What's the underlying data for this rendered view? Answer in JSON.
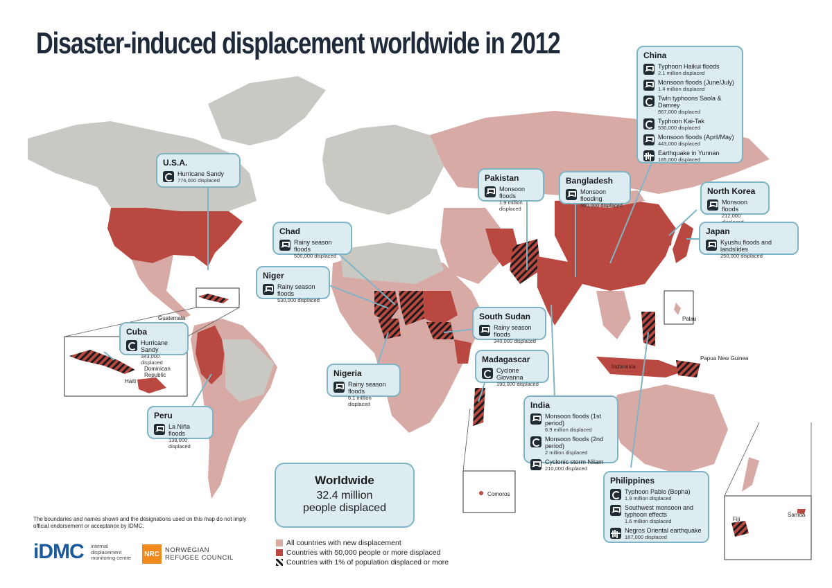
{
  "title": "Disaster-induced displacement worldwide in 2012",
  "colors": {
    "no_data": "#c9c8c3",
    "new_displacement": "#d8aaa6",
    "over_50000": "#b84840",
    "over_1pct_hatch": "#1a1a1a",
    "box_fill": "#dcecf1",
    "box_border": "#7fb4c5",
    "title": "#1e2a3a"
  },
  "boxes": {
    "usa": {
      "country": "U.S.A.",
      "events": [
        {
          "icon": "storm-icon",
          "name": "Hurricane Sandy",
          "displaced": "776,000 displaced"
        }
      ]
    },
    "cuba": {
      "country": "Cuba",
      "events": [
        {
          "icon": "storm-icon",
          "name": "Hurricane Sandy",
          "displaced": "343,000 displaced"
        }
      ]
    },
    "peru": {
      "country": "Peru",
      "events": [
        {
          "icon": "flood-icon",
          "name": "La Niña floods",
          "displaced": "138,000 displaced"
        }
      ]
    },
    "chad": {
      "country": "Chad",
      "events": [
        {
          "icon": "flood-icon",
          "name": "Rainy season floods",
          "displaced": "500,000 displaced"
        }
      ]
    },
    "niger": {
      "country": "Niger",
      "events": [
        {
          "icon": "flood-icon",
          "name": "Rainy season floods",
          "displaced": "530,000 displaced"
        }
      ]
    },
    "nigeria": {
      "country": "Nigeria",
      "events": [
        {
          "icon": "flood-icon",
          "name": "Rainy season floods",
          "displaced": "6.1 million displaced"
        }
      ]
    },
    "south_sudan": {
      "country": "South Sudan",
      "events": [
        {
          "icon": "flood-icon",
          "name": "Rainy season floods",
          "displaced": "340,000 displaced"
        }
      ]
    },
    "madagascar": {
      "country": "Madagascar",
      "events": [
        {
          "icon": "storm-icon",
          "name": "Cyclone Giovanna",
          "displaced": "190,000 displaced"
        }
      ]
    },
    "pakistan": {
      "country": "Pakistan",
      "events": [
        {
          "icon": "flood-icon",
          "name": "Monsoon floods",
          "displaced": "1.9 million displaced"
        }
      ]
    },
    "bangladesh": {
      "country": "Bangladesh",
      "events": [
        {
          "icon": "flood-icon",
          "name": "Monsoon flooding",
          "displaced": "600,000 displaced"
        }
      ]
    },
    "india": {
      "country": "India",
      "events": [
        {
          "icon": "flood-icon",
          "name": "Monsoon floods (1st period)",
          "displaced": "6.9 million displaced"
        },
        {
          "icon": "storm-icon",
          "name": "Monsoon floods (2nd period)",
          "displaced": "2 million displaced"
        },
        {
          "icon": "flood-icon",
          "name": "Cyclonic storm Nilam",
          "displaced": "210,000 displaced"
        }
      ]
    },
    "china": {
      "country": "China",
      "events": [
        {
          "icon": "flood-icon",
          "name": "Typhoon Haikui floods",
          "displaced": "2.1 million displaced"
        },
        {
          "icon": "flood-icon",
          "name": "Monsoon floods (June/July)",
          "displaced": "1.4 million displaced"
        },
        {
          "icon": "storm-icon",
          "name": "Twin typhoons Saola & Damrey",
          "displaced": "867,000 displaced"
        },
        {
          "icon": "storm-icon",
          "name": "Typhoon Kai-Tak",
          "displaced": "530,000 displaced"
        },
        {
          "icon": "flood-icon",
          "name": "Monsoon floods (April/May)",
          "displaced": "443,000 displaced"
        },
        {
          "icon": "quake-icon",
          "name": "Earthquake in Yunnan",
          "displaced": "185,000 displaced"
        }
      ]
    },
    "north_korea": {
      "country": "North Korea",
      "events": [
        {
          "icon": "flood-icon",
          "name": "Monsoon floods",
          "displaced": "212,000 displaced"
        }
      ]
    },
    "japan": {
      "country": "Japan",
      "events": [
        {
          "icon": "flood-icon",
          "name": "Kyushu floods and landslides",
          "displaced": "250,000 displaced"
        }
      ]
    },
    "philippines": {
      "country": "Philippines",
      "events": [
        {
          "icon": "storm-icon",
          "name": "Typhoon Pablo (Bopha)",
          "displaced": "1.9 million displaced"
        },
        {
          "icon": "flood-icon",
          "name": "Southwest monsoon and typhoon effects",
          "displaced": "1.6 million displaced"
        },
        {
          "icon": "quake-icon",
          "name": "Negros Oriental earthquake",
          "displaced": "187,000 displaced"
        }
      ]
    }
  },
  "map_labels": {
    "guatemala": "Guatemala",
    "dominican_republic": "Dominican Republic",
    "haiti": "Haiti",
    "palau": "Palau",
    "papua_new_guinea": "Papua New Guinea",
    "indonesia": "Indonesia",
    "comoros": "Comoros",
    "fiji": "Fiji",
    "samoa": "Samoa"
  },
  "worldwide": {
    "heading": "Worldwide",
    "value": "32.4 million",
    "desc": "people displaced"
  },
  "disclaimer": "The boundaries and names shown and the designations used on this map do not imply official endorsement or acceptance by IDMC.",
  "legend": [
    {
      "label": "All countries with new displacement",
      "swatch": "#d8aaa6"
    },
    {
      "label": "Countries with 50,000 people or more displaced",
      "swatch": "#b84840"
    },
    {
      "label": "Countries with 1% of population displaced or more",
      "swatch": "hatch"
    }
  ],
  "logos": {
    "idmc": "iDMC",
    "idmc_sub": "internal displacement monitoring centre",
    "nrc_mark": "NRC",
    "nrc_text_1": "NORWEGIAN",
    "nrc_text_2": "REFUGEE COUNCIL"
  }
}
